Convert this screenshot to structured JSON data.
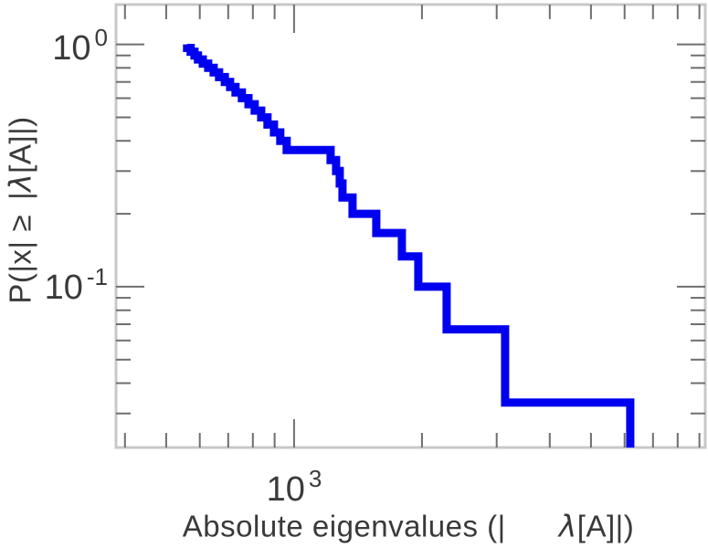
{
  "figure": {
    "title": "",
    "x_axis_label": {
      "prefix": "Absolute eigenvalues (|",
      "lambda": "λ",
      "suffix": "[A]|)"
    },
    "y_axis_label": {
      "p1": "P(|x|",
      "p2": "≥",
      "p3": "|",
      "lambda": "λ",
      "p4": "[A]|)"
    },
    "x_tick_labels": [
      {
        "base": "10",
        "exp": "3"
      }
    ],
    "y_tick_labels": [
      {
        "base": "10",
        "exp": "0"
      },
      {
        "base": "10",
        "exp": "-1"
      }
    ]
  },
  "colors": {
    "line": "#0000f0",
    "frame": "#c8c8c8",
    "tick": "#6e6e6e",
    "text": "#3a3a3a",
    "background": "#ffffff"
  },
  "chart_data": {
    "type": "line",
    "subtype": "empirical-ccdf-staircase",
    "title": "",
    "xlabel": "Absolute eigenvalues (|λ[A]|)",
    "ylabel": "P(|x| ≥ |λ[A]|)",
    "x_scale": "log",
    "y_scale": "log",
    "grid": false,
    "legend": null,
    "n_points": 30,
    "ccdf_start": 1.0,
    "eigenvalues": [
      560,
      571,
      583,
      594,
      610,
      628,
      647,
      666,
      687,
      707,
      728,
      754,
      781,
      808,
      837,
      866,
      897,
      928,
      961,
      1219,
      1256,
      1281,
      1300,
      1373,
      1562,
      1794,
      1961,
      2287,
      3140,
      6186
    ],
    "ccdf_after_drop": [
      0.9667,
      0.9333,
      0.9,
      0.8667,
      0.8333,
      0.8,
      0.7667,
      0.7333,
      0.7,
      0.6667,
      0.6333,
      0.6,
      0.5667,
      0.5333,
      0.5,
      0.4667,
      0.4333,
      0.4,
      0.3667,
      0.3333,
      0.3,
      0.2667,
      0.2333,
      0.2,
      0.1667,
      0.1333,
      0.1,
      0.0667,
      0.0333,
      0
    ],
    "xlim": [
      381,
      9290
    ],
    "ylim": [
      0.0217,
      1.46
    ],
    "x_ticks_major": [
      1000
    ],
    "x_ticks_minor": [
      400,
      500,
      600,
      700,
      800,
      900,
      2000,
      3000,
      4000,
      5000,
      6000,
      7000,
      8000,
      9000
    ],
    "y_ticks_major": [
      1,
      0.1
    ],
    "y_ticks_minor": [
      0.9,
      0.8,
      0.7,
      0.6,
      0.5,
      0.4,
      0.3,
      0.2,
      0.09,
      0.08,
      0.07,
      0.06,
      0.05,
      0.04,
      0.03
    ]
  }
}
